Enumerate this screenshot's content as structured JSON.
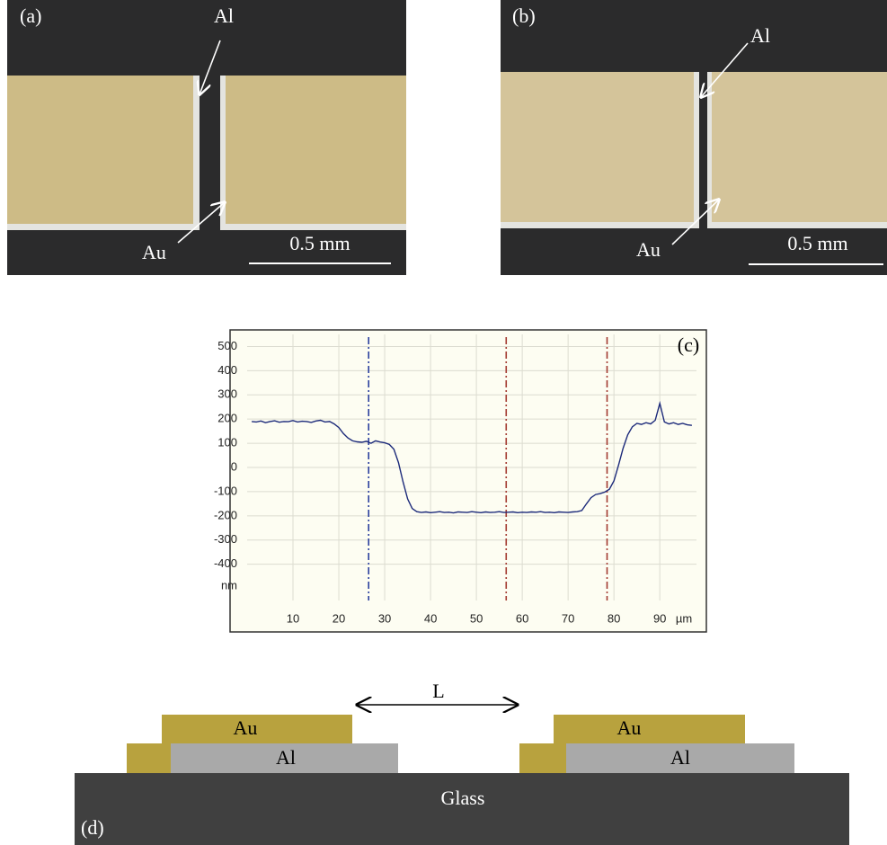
{
  "panels": {
    "a": {
      "label": "(a)",
      "top_arrow": "Al",
      "bottom_arrow": "Au",
      "scale_bar": "0.5 mm"
    },
    "b": {
      "label": "(b)",
      "top_arrow": "Al",
      "bottom_arrow": "Au",
      "scale_bar": "0.5 mm"
    },
    "d": {
      "label": "(d)",
      "left_top": "Au",
      "left_bottom": "Al",
      "gap": "L",
      "right_top": "Au",
      "right_bottom": "Al",
      "substrate": "Glass"
    }
  },
  "chart_data": {
    "type": "line",
    "annotation": "(c)",
    "x_unit": "µm",
    "y_unit": "nm",
    "xlim": [
      0,
      98
    ],
    "ylim": [
      -550,
      550
    ],
    "xticks": [
      10,
      20,
      30,
      40,
      50,
      60,
      70,
      80,
      90
    ],
    "yticks": [
      500,
      400,
      300,
      200,
      100,
      0,
      -100,
      -200,
      -300,
      -400
    ],
    "grid": true,
    "x": [
      1,
      2,
      3,
      4,
      5,
      6,
      7,
      8,
      9,
      10,
      11,
      12,
      13,
      14,
      15,
      16,
      17,
      18,
      19,
      20,
      21,
      22,
      23,
      24,
      25,
      26,
      27,
      28,
      29,
      30,
      31,
      32,
      33,
      34,
      35,
      36,
      37,
      38,
      39,
      40,
      41,
      42,
      43,
      44,
      45,
      46,
      47,
      48,
      49,
      50,
      51,
      52,
      53,
      54,
      55,
      56,
      57,
      58,
      59,
      60,
      61,
      62,
      63,
      64,
      65,
      66,
      67,
      68,
      69,
      70,
      71,
      72,
      73,
      74,
      75,
      76,
      77,
      78,
      79,
      80,
      81,
      82,
      83,
      84,
      85,
      86,
      87,
      88,
      89,
      90,
      91,
      92,
      93,
      94,
      95,
      96,
      97
    ],
    "series": [
      {
        "color": "#1c2a7a",
        "values": [
          190,
          188,
          192,
          185,
          190,
          193,
          187,
          190,
          189,
          194,
          188,
          191,
          190,
          186,
          192,
          195,
          188,
          190,
          180,
          165,
          140,
          122,
          110,
          106,
          104,
          108,
          100,
          110,
          105,
          102,
          95,
          75,
          20,
          -60,
          -130,
          -170,
          -183,
          -186,
          -184,
          -187,
          -185,
          -183,
          -186,
          -185,
          -188,
          -184,
          -185,
          -186,
          -183,
          -185,
          -187,
          -184,
          -186,
          -185,
          -183,
          -186,
          -185,
          -184,
          -187,
          -185,
          -186,
          -184,
          -185,
          -183,
          -186,
          -185,
          -187,
          -184,
          -185,
          -186,
          -184,
          -183,
          -178,
          -150,
          -125,
          -112,
          -108,
          -102,
          -90,
          -55,
          10,
          80,
          135,
          168,
          182,
          178,
          185,
          180,
          195,
          265,
          188,
          180,
          185,
          178,
          182,
          176,
          174
        ]
      }
    ],
    "markers": [
      {
        "x": 26.5,
        "color": "#2b3f9e"
      },
      {
        "x": 56.5,
        "color": "#a33a30"
      },
      {
        "x": 78.5,
        "color": "#a33a30"
      }
    ]
  }
}
